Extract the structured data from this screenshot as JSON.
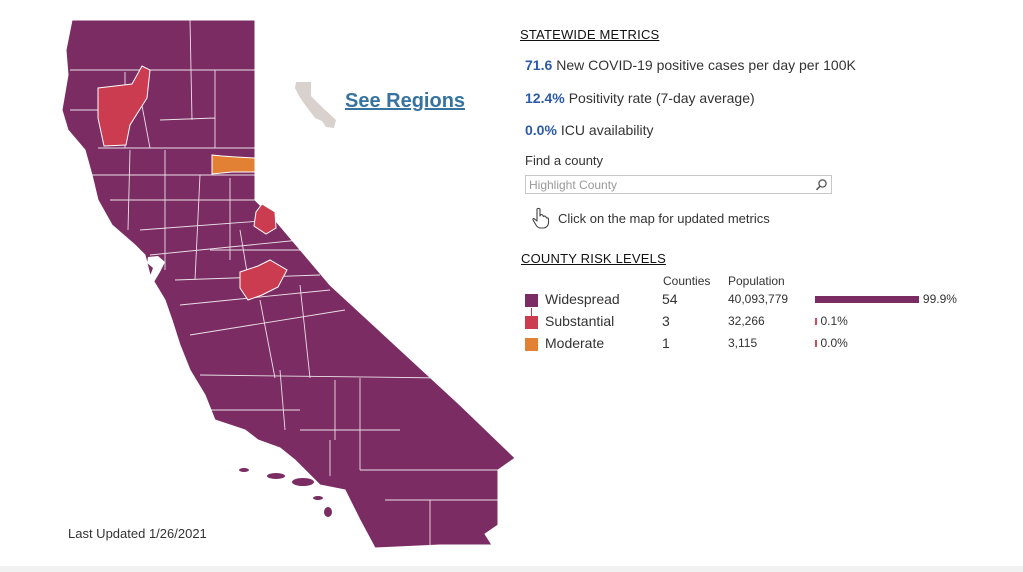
{
  "colors": {
    "widespread": "#7b2d63",
    "substantial": "#cc3c50",
    "moderate": "#e28033",
    "link": "#36739e",
    "metric_number": "#2b5aa6"
  },
  "map": {
    "last_updated": "Last Updated 1/26/2021",
    "regions_link": {
      "label": "See Regions",
      "icon": "california-outline-icon"
    }
  },
  "statewide": {
    "heading": "STATEWIDE METRICS",
    "metrics": [
      {
        "value": "71.6",
        "label": "New COVID-19 positive cases per day per 100K"
      },
      {
        "value": "12.4%",
        "label": "Positivity rate (7-day average)"
      },
      {
        "value": "0.0%",
        "label": "ICU availability"
      }
    ]
  },
  "find_county": {
    "label": "Find a county",
    "placeholder": "Highlight County",
    "search_icon": "search-icon"
  },
  "hint": {
    "icon": "pointer-hand-icon",
    "text": "Click on the map for updated metrics"
  },
  "risk_levels": {
    "heading": "COUNTY RISK LEVELS",
    "col_counties": "Counties",
    "col_population": "Population",
    "rows": [
      {
        "level": "Widespread",
        "counties": "54",
        "population": "40,093,779",
        "share": 99.9,
        "share_label": "99.9%",
        "color": "#7b2d63"
      },
      {
        "level": "Substantial",
        "counties": "3",
        "population": "32,266",
        "share": 0.1,
        "share_label": "0.1%",
        "color": "#cc3c50"
      },
      {
        "level": "Moderate",
        "counties": "1",
        "population": "3,115",
        "share": 0.0,
        "share_label": "0.0%",
        "color": "#e28033"
      }
    ]
  }
}
